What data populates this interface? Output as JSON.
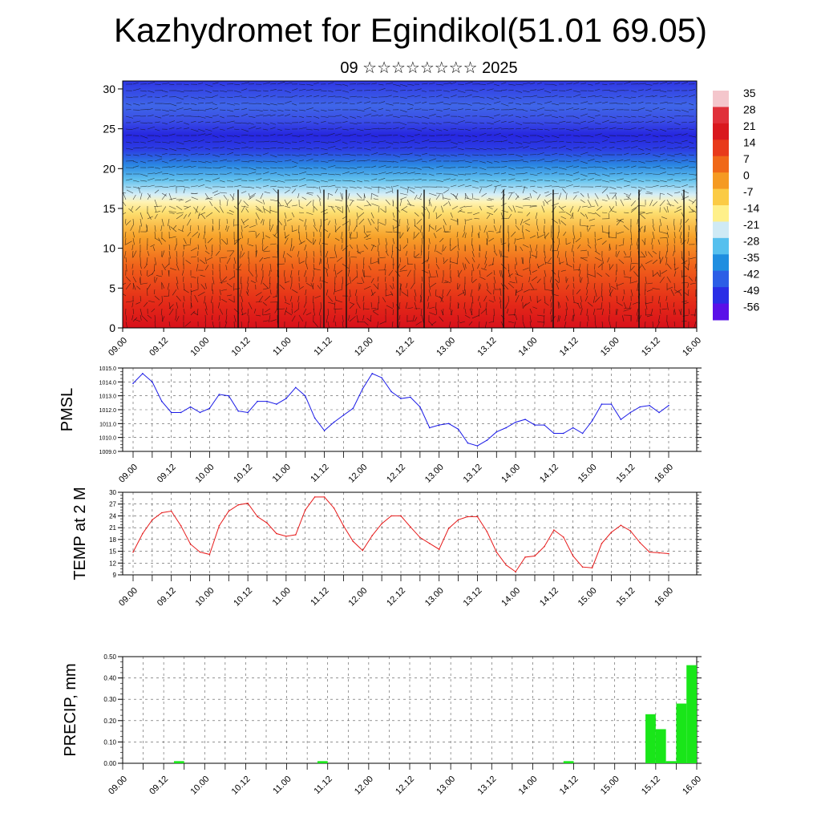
{
  "title": "Kazhydromet for Egindikol(51.01 69.05)",
  "subtitle": "09 ☆☆☆☆☆☆☆☆ 2025",
  "colors": {
    "pmsl_line": "#1a1ae6",
    "temp_line": "#e61a1a",
    "precip_bar": "#19e619",
    "grid": "#888888"
  },
  "time_ticks": [
    "09.00",
    "09.12",
    "10.00",
    "10.12",
    "11.00",
    "11.12",
    "12.00",
    "12.12",
    "13.00",
    "13.12",
    "14.00",
    "14.12",
    "15.00",
    "15.12",
    "16.00"
  ],
  "chart_data": [
    {
      "type": "heatmap",
      "name": "cross-section",
      "title": "",
      "x_ticks": [
        "09.00",
        "09.12",
        "10.00",
        "10.12",
        "11.00",
        "11.12",
        "12.00",
        "12.12",
        "13.00",
        "13.12",
        "14.00",
        "14.12",
        "15.00",
        "15.12",
        "16.00"
      ],
      "y_ticks": [
        "0",
        "5",
        "10",
        "15",
        "20",
        "25",
        "30"
      ],
      "ylim": [
        0,
        31
      ],
      "colorbar_labels": [
        "35",
        "28",
        "21",
        "14",
        "7",
        "0",
        "-7",
        "-14",
        "-21",
        "-28",
        "-35",
        "-42",
        "-49",
        "-56"
      ],
      "colorbar_colors": [
        "#f4c6cc",
        "#e0303a",
        "#d9181e",
        "#e83a1a",
        "#f06818",
        "#f59a22",
        "#fbcb45",
        "#fff08a",
        "#cfeaf5",
        "#56c0ee",
        "#1f8ee0",
        "#2c5ee6",
        "#2a2ee6",
        "#5a10e8"
      ],
      "notes": "temperature field with overlaid wind vectors"
    },
    {
      "type": "line",
      "name": "PMSL",
      "ylabel": "PMSL",
      "ylim": [
        1009.0,
        1015.0
      ],
      "y_ticks": [
        "1009.0",
        "1010.0",
        "1011.0",
        "1012.0",
        "1013.0",
        "1014.0",
        "1015.0"
      ],
      "x": [
        0,
        3,
        6,
        9,
        12,
        15,
        18,
        21,
        24,
        27,
        30,
        33,
        36,
        39,
        42,
        45,
        48,
        51,
        54,
        57,
        60,
        63,
        66,
        69,
        72,
        75,
        78,
        81,
        84,
        87,
        90,
        93,
        96,
        99,
        102,
        105,
        108,
        111,
        114,
        117,
        120,
        123,
        126,
        129,
        132,
        135,
        138,
        141,
        144,
        147,
        150,
        153,
        156,
        159,
        162,
        165,
        168
      ],
      "series": [
        {
          "values": [
            1013.9,
            1014.6,
            1014.0,
            1012.6,
            1011.8,
            1011.8,
            1012.2,
            1011.8,
            1012.1,
            1013.1,
            1013.0,
            1011.9,
            1011.8,
            1012.6,
            1012.6,
            1012.4,
            1012.8,
            1013.6,
            1013.0,
            1011.4,
            1010.5,
            1011.1,
            1011.6,
            1012.1,
            1013.5,
            1014.6,
            1014.3,
            1013.3,
            1012.8,
            1012.9,
            1012.2,
            1010.7,
            1010.9,
            1011.0,
            1010.6,
            1009.6,
            1009.4,
            1009.8,
            1010.4,
            1010.7,
            1011.1,
            1011.3,
            1010.9,
            1010.9,
            1010.3,
            1010.3,
            1010.7,
            1010.3,
            1011.2,
            1012.4,
            1012.4,
            1011.3,
            1011.8,
            1012.2,
            1012.3,
            1011.8,
            1012.3
          ]
        }
      ]
    },
    {
      "type": "line",
      "name": "TEMP at 2 M",
      "ylabel": "TEMP at 2 M",
      "ylim": [
        9,
        30
      ],
      "y_ticks": [
        "9",
        "12",
        "15",
        "18",
        "21",
        "24",
        "27",
        "30"
      ],
      "x": [
        0,
        3,
        6,
        9,
        12,
        15,
        18,
        21,
        24,
        27,
        30,
        33,
        36,
        39,
        42,
        45,
        48,
        51,
        54,
        57,
        60,
        63,
        66,
        69,
        72,
        75,
        78,
        81,
        84,
        87,
        90,
        93,
        96,
        99,
        102,
        105,
        108,
        111,
        114,
        117,
        120,
        123,
        126,
        129,
        132,
        135,
        138,
        141,
        144,
        147,
        150,
        153,
        156,
        159,
        162,
        165,
        168
      ],
      "series": [
        {
          "values": [
            14.8,
            19.5,
            23.0,
            24.8,
            25.2,
            21.5,
            16.8,
            14.8,
            14.2,
            21.5,
            25.2,
            26.8,
            27.2,
            23.8,
            22.2,
            19.5,
            18.8,
            19.2,
            25.5,
            28.8,
            28.8,
            26.0,
            21.5,
            17.5,
            15.2,
            19.0,
            22.0,
            24.0,
            24.0,
            21.2,
            18.5,
            17.0,
            15.5,
            20.8,
            23.0,
            23.8,
            23.8,
            20.0,
            14.8,
            11.5,
            9.8,
            13.5,
            13.8,
            16.2,
            20.4,
            18.6,
            13.8,
            11.0,
            10.8,
            17.0,
            19.8,
            21.6,
            20.2,
            17.2,
            14.8,
            14.6,
            14.4
          ]
        }
      ]
    },
    {
      "type": "bar",
      "name": "PRECIP",
      "ylabel": "PRECIP, mm",
      "ylim": [
        0,
        0.5
      ],
      "y_ticks": [
        "0.00",
        "0.10",
        "0.20",
        "0.30",
        "0.40",
        "0.50"
      ],
      "x": [
        18,
        60,
        132,
        156,
        159,
        162,
        165,
        168
      ],
      "values": [
        0.01,
        0.01,
        0.01,
        0.23,
        0.16,
        0.01,
        0.28,
        0.46
      ]
    }
  ]
}
